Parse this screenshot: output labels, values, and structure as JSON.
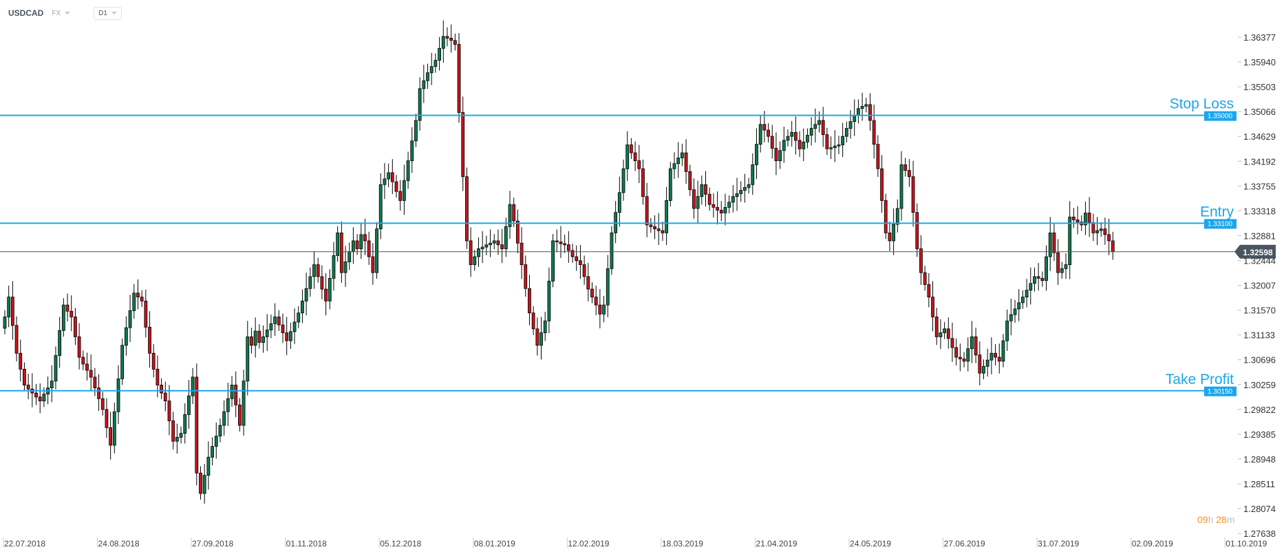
{
  "header": {
    "symbol": "USDCAD",
    "market": "FX",
    "timeframe": "D1"
  },
  "timer": {
    "hours": "09",
    "hours_unit": "h",
    "minutes": "28",
    "minutes_unit": "m"
  },
  "colors": {
    "bull": "#0e7a4e",
    "bear": "#c8141b",
    "level_line": "#1ba6ec",
    "current_price": "#4a5560",
    "timer": "#f7931e"
  },
  "chart_data": {
    "type": "candlestick",
    "title": "",
    "instrument": "USDCAD",
    "timeframe": "D1",
    "ylim": [
      1.27638,
      1.36377
    ],
    "y_ticks": [
      "1.36377",
      "1.35940",
      "1.35503",
      "1.35066",
      "1.34629",
      "1.34192",
      "1.33755",
      "1.33318",
      "1.32881",
      "1.32444",
      "1.32007",
      "1.31570",
      "1.31133",
      "1.30696",
      "1.30259",
      "1.29822",
      "1.29385",
      "1.28948",
      "1.28511",
      "1.28074",
      "1.27638"
    ],
    "x_ticks": [
      "22.07.2018",
      "24.08.2018",
      "27.09.2018",
      "01.11.2018",
      "05.12.2018",
      "08.01.2019",
      "12.02.2019",
      "18.03.2019",
      "21.04.2019",
      "24.05.2019",
      "27.06.2019",
      "31.07.2019",
      "02.09.2019",
      "01.10.2019"
    ],
    "grid": false,
    "levels": [
      {
        "name": "Stop Loss",
        "price": "1.35000"
      },
      {
        "name": "Entry",
        "price": "1.33100"
      },
      {
        "name": "Take Profit",
        "price": "1.30150"
      }
    ],
    "current_price": "1.32598",
    "closes": [
      1.3145,
      1.318,
      1.313,
      1.3081,
      1.3053,
      1.3025,
      1.3018,
      1.3011,
      1.3004,
      1.2997,
      1.3009,
      1.302,
      1.3032,
      1.3077,
      1.3121,
      1.3166,
      1.3155,
      1.3145,
      1.311,
      1.3074,
      1.3062,
      1.3051,
      1.3039,
      1.302,
      1.3001,
      1.2982,
      1.295,
      1.2919,
      1.2978,
      1.3036,
      1.3095,
      1.3126,
      1.3156,
      1.3187,
      1.318,
      1.3173,
      1.3127,
      1.3081,
      1.3053,
      1.3025,
      1.3011,
      1.2997,
      1.2962,
      1.2926,
      1.2933,
      1.294,
      1.2973,
      1.3006,
      1.3039,
      1.287,
      1.2834,
      1.2866,
      1.2898,
      1.2917,
      1.2935,
      1.2954,
      1.2978,
      1.3001,
      1.3025,
      1.299,
      1.2954,
      1.3032,
      1.311,
      1.3095,
      1.312,
      1.31,
      1.311,
      1.3122,
      1.3133,
      1.3145,
      1.3131,
      1.3117,
      1.3103,
      1.3119,
      1.3136,
      1.3152,
      1.3173,
      1.3195,
      1.3216,
      1.3237,
      1.3216,
      1.3194,
      1.3173,
      1.3213,
      1.3253,
      1.3293,
      1.3223,
      1.3242,
      1.326,
      1.3279,
      1.3265,
      1.329,
      1.3279,
      1.3251,
      1.3223,
      1.33,
      1.3378,
      1.3388,
      1.3399,
      1.3383,
      1.3366,
      1.335,
      1.3385,
      1.342,
      1.3455,
      1.3491,
      1.3547,
      1.3561,
      1.3575,
      1.3586,
      1.3597,
      1.3618,
      1.3639,
      1.3636,
      1.3632,
      1.3625,
      1.3505,
      1.3392,
      1.3279,
      1.3237,
      1.3251,
      1.3265,
      1.3268,
      1.3272,
      1.3275,
      1.3279,
      1.3272,
      1.3265,
      1.3304,
      1.3343,
      1.3314,
      1.3275,
      1.3237,
      1.3195,
      1.3152,
      1.3124,
      1.3095,
      1.3117,
      1.3138,
      1.3208,
      1.3279,
      1.3277,
      1.3274,
      1.3272,
      1.3262,
      1.3251,
      1.3244,
      1.3237,
      1.3216,
      1.3194,
      1.318,
      1.3166,
      1.315,
      1.3166,
      1.323,
      1.3293,
      1.3329,
      1.3364,
      1.3406,
      1.3448,
      1.3434,
      1.342,
      1.3406,
      1.3357,
      1.3307,
      1.3304,
      1.33,
      1.3297,
      1.3293,
      1.335,
      1.3406,
      1.3415,
      1.3425,
      1.3434,
      1.3401,
      1.3369,
      1.3336,
      1.3357,
      1.3378,
      1.3361,
      1.3343,
      1.3338,
      1.3333,
      1.3328,
      1.3338,
      1.3347,
      1.3357,
      1.3362,
      1.3368,
      1.3373,
      1.3378,
      1.3413,
      1.3449,
      1.3484,
      1.3474,
      1.3463,
      1.3442,
      1.342,
      1.3438,
      1.3456,
      1.3463,
      1.347,
      1.3456,
      1.3441,
      1.3453,
      1.3465,
      1.3477,
      1.3484,
      1.3491,
      1.3466,
      1.3441,
      1.3443,
      1.3446,
      1.3448,
      1.3463,
      1.3477,
      1.3489,
      1.35,
      1.3512,
      1.3516,
      1.3519,
      1.3491,
      1.3449,
      1.3406,
      1.335,
      1.3293,
      1.3279,
      1.3308,
      1.3336,
      1.3413,
      1.3403,
      1.3392,
      1.3329,
      1.3265,
      1.3223,
      1.3202,
      1.318,
      1.3145,
      1.311,
      1.3117,
      1.3124,
      1.3107,
      1.3091,
      1.3074,
      1.3071,
      1.3067,
      1.3089,
      1.311,
      1.3078,
      1.3046,
      1.3058,
      1.3069,
      1.3081,
      1.3074,
      1.3067,
      1.3103,
      1.3138,
      1.3149,
      1.3159,
      1.317,
      1.318,
      1.3192,
      1.3204,
      1.3216,
      1.3213,
      1.3209,
      1.3251,
      1.3293,
      1.3258,
      1.3223,
      1.323,
      1.3237,
      1.3321,
      1.3316,
      1.3312,
      1.3307,
      1.3328,
      1.3311,
      1.3293,
      1.3297,
      1.33,
      1.329,
      1.3279,
      1.326
    ]
  }
}
